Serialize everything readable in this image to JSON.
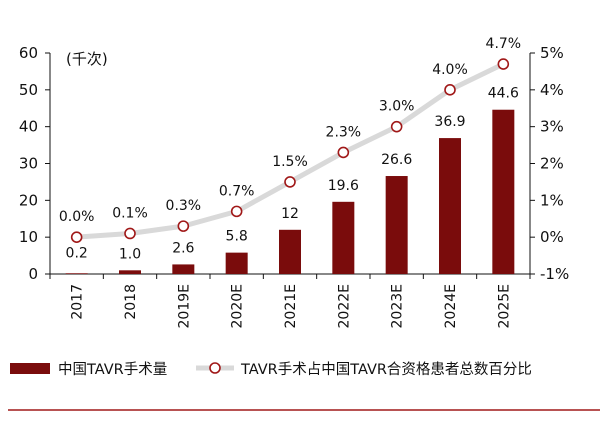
{
  "chart_data": {
    "type": "bar+line",
    "categories": [
      "2017",
      "2018",
      "2019E",
      "2020E",
      "2021E",
      "2022E",
      "2023E",
      "2024E",
      "2025E"
    ],
    "series": [
      {
        "name": "中国TAVR手术量",
        "type": "bar",
        "axis": "left",
        "values": [
          0.2,
          1.0,
          2.6,
          5.8,
          12,
          19.6,
          26.6,
          36.9,
          44.6
        ],
        "labels": [
          "0.2",
          "1.0",
          "2.6",
          "5.8",
          "12",
          "19.6",
          "26.6",
          "36.9",
          "44.6"
        ],
        "color": "#7a0c0c"
      },
      {
        "name": "TAVR手术占中国TAVR合资格患者总数百分比",
        "type": "line",
        "axis": "right",
        "values": [
          0.0,
          0.1,
          0.3,
          0.7,
          1.5,
          2.3,
          3.0,
          4.0,
          4.7
        ],
        "labels": [
          "0.0%",
          "0.1%",
          "0.3%",
          "0.7%",
          "1.5%",
          "2.3%",
          "3.0%",
          "4.0%",
          "4.7%"
        ],
        "line_color": "#d9d9d9",
        "marker_color": "#a01818"
      }
    ],
    "y_left": {
      "unit_label": "(千次)",
      "range": [
        0,
        60
      ],
      "ticks": [
        "0",
        "10",
        "20",
        "30",
        "40",
        "50",
        "60"
      ]
    },
    "y_right": {
      "range": [
        -1,
        5
      ],
      "ticks": [
        "-1%",
        "0%",
        "1%",
        "2%",
        "3%",
        "4%",
        "5%"
      ]
    },
    "grid": false,
    "legend_position": "bottom"
  },
  "colors": {
    "bottom_rule": "#a01818",
    "axis": "#111111"
  }
}
